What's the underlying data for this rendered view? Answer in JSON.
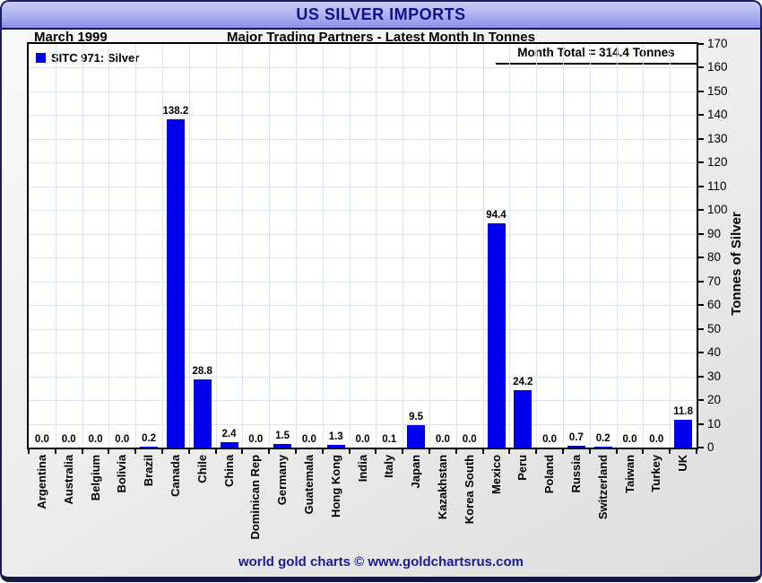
{
  "window": {
    "title": "US SILVER IMPORTS",
    "footer": "world gold charts © www.goldchartsrus.com"
  },
  "header": {
    "date_label": "March 1999",
    "subtitle": "Major Trading Partners - Latest Month In Tonnes"
  },
  "legend": {
    "label": "SITC 971: Silver"
  },
  "annotation": {
    "month_total": "Month Total = 314.4 Tonnes"
  },
  "colors": {
    "bar": "#0000ee",
    "title_text": "#10108c",
    "footer_text": "#1c1c8f",
    "grid": "#dbe5f1",
    "titlebar_top": "#c9ccf7",
    "titlebar_bottom": "#8a90e4",
    "frame_border": "#1b1b60"
  },
  "chart_data": {
    "type": "bar",
    "title": "US SILVER IMPORTS",
    "subtitle": "Major Trading Partners - Latest Month In Tonnes",
    "period": "March 1999",
    "ylabel": "Tonnes of Silver",
    "ylim": [
      0,
      170
    ],
    "ytick_step": 10,
    "grid": true,
    "legend_position": "top-left",
    "legend_entries": [
      "SITC 971: Silver"
    ],
    "month_total_tonnes": 314.4,
    "categories": [
      "Argentina",
      "Australia",
      "Belgium",
      "Bolivia",
      "Brazil",
      "Canada",
      "Chile",
      "China",
      "Dominican Rep",
      "Germany",
      "Guatemala",
      "Hong Kong",
      "India",
      "Italy",
      "Japan",
      "Kazakhstan",
      "Korea South",
      "Mexico",
      "Peru",
      "Poland",
      "Russia",
      "Switzerland",
      "Taiwan",
      "Turkey",
      "UK"
    ],
    "values": [
      0.0,
      0.0,
      0.0,
      0.0,
      0.2,
      138.2,
      28.8,
      2.4,
      0.0,
      1.5,
      0.0,
      1.3,
      0.0,
      0.1,
      9.5,
      0.0,
      0.0,
      94.4,
      24.2,
      0.0,
      0.7,
      0.2,
      0.0,
      0.0,
      11.8
    ],
    "value_labels": [
      "0.0",
      "0.0",
      "0.0",
      "0.0",
      "0.2",
      "138.2",
      "28.8",
      "2.4",
      "0.0",
      "1.5",
      "0.0",
      "1.3",
      "0.0",
      "0.1",
      "9.5",
      "0.0",
      "0.0",
      "94.4",
      "24.2",
      "0.0",
      "0.7",
      "0.2",
      "0.0",
      "0.0",
      "11.8"
    ]
  }
}
